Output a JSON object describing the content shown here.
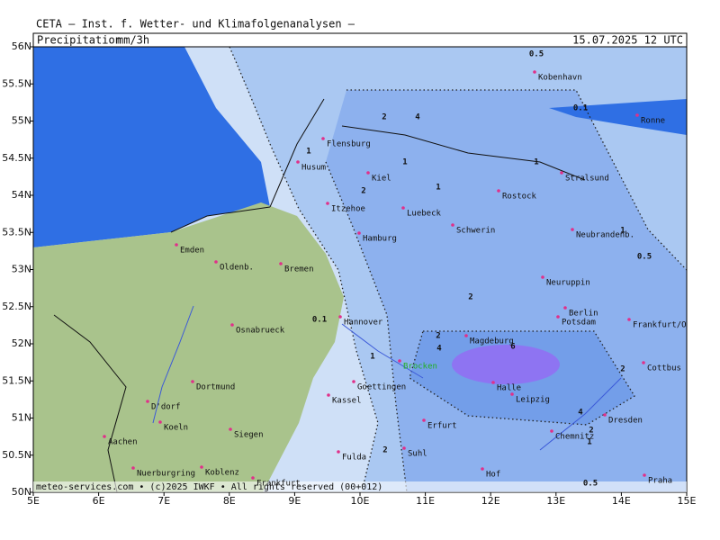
{
  "header": {
    "title": "CETA — Inst. f. Wetter- und Klimafolgenanalysen —",
    "field": "Precipitation",
    "unit": "mm/3h",
    "date": "15.07.2025 12 UTC"
  },
  "axes": {
    "lat": [
      {
        "value": 56,
        "label": "56N"
      },
      {
        "value": 55.5,
        "label": "55.5N"
      },
      {
        "value": 55,
        "label": "55N"
      },
      {
        "value": 54.5,
        "label": "54.5N"
      },
      {
        "value": 54,
        "label": "54N"
      },
      {
        "value": 53.5,
        "label": "53.5N"
      },
      {
        "value": 53,
        "label": "53N"
      },
      {
        "value": 52.5,
        "label": "52.5N"
      },
      {
        "value": 52,
        "label": "52N"
      },
      {
        "value": 51.5,
        "label": "51.5N"
      },
      {
        "value": 51,
        "label": "51N"
      },
      {
        "value": 50.5,
        "label": "50.5N"
      },
      {
        "value": 50,
        "label": "50N"
      }
    ],
    "lon": [
      {
        "value": 5,
        "label": "5E"
      },
      {
        "value": 6,
        "label": "6E"
      },
      {
        "value": 7,
        "label": "7E"
      },
      {
        "value": 8,
        "label": "8E"
      },
      {
        "value": 9,
        "label": "9E"
      },
      {
        "value": 10,
        "label": "10E"
      },
      {
        "value": 11,
        "label": "11E"
      },
      {
        "value": 12,
        "label": "12E"
      },
      {
        "value": 13,
        "label": "13E"
      },
      {
        "value": 14,
        "label": "14E"
      },
      {
        "value": 15,
        "label": "15E"
      }
    ]
  },
  "cities": [
    "Kobenhavn",
    "Ronne",
    "Flensburg",
    "Husum",
    "Kiel",
    "Stralsund",
    "Rostock",
    "Itzehoe",
    "Luebeck",
    "Schwerin",
    "Hamburg",
    "Neubrandenb.",
    "Emden",
    "Oldenb.",
    "Bremen",
    "Neuruppin",
    "Berlin",
    "Potsdam",
    "Hannover",
    "Frankfurt/O",
    "Osnabrueck",
    "Magdeburg",
    "Brocken",
    "Cottbus",
    "Dortmund",
    "Halle",
    "Goettingen",
    "Leipzig",
    "Kassel",
    "D'dorf",
    "Erfurt",
    "Koeln",
    "Dresden",
    "Siegen",
    "Aachen",
    "Chemnitz",
    "Suhl",
    "Fulda",
    "Hof",
    "Nuerburgring",
    "Koblenz",
    "Frankfurt",
    "Praha"
  ],
  "contour_labels": [
    "0.5",
    "0.1",
    "2",
    "4",
    "1",
    "1",
    "1",
    "2",
    "1",
    "1",
    "0.5",
    "2",
    "0.1",
    "2",
    "4",
    "6",
    "1",
    "2",
    "4",
    "2",
    "2",
    "0.5",
    "1"
  ],
  "footer": "meteo-services.com • (c)2025 IWKF • All rights reserved (00+012)"
}
